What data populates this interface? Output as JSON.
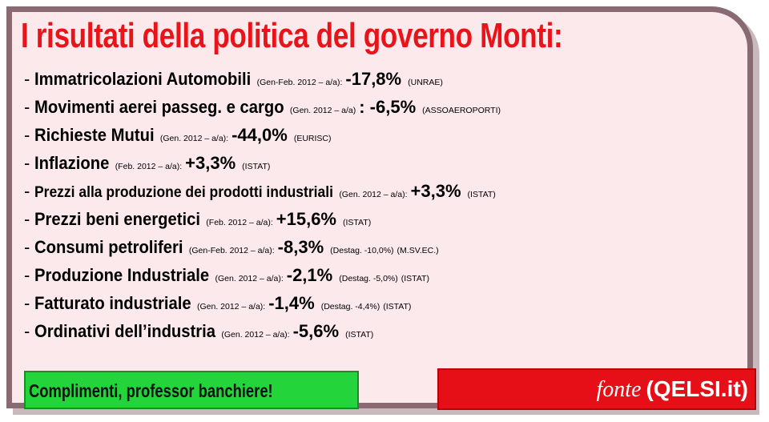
{
  "title": "I risultati della politica del governo Monti:",
  "items": [
    {
      "label": "Immatricolazioni Automobili",
      "detail": "(Gen-Feb. 2012 – a/a):",
      "value": "-17,8%",
      "note": "",
      "source": "(UNRAE)"
    },
    {
      "label": "Movimenti aerei passeg. e cargo",
      "detail": "(Gen. 2012 – a/a)",
      "value": ": -6,5%",
      "note": "",
      "source": "(ASSOAEROPORTI)"
    },
    {
      "label": "Richieste Mutui",
      "detail": "(Gen. 2012 – a/a):",
      "value": "-44,0%",
      "note": "",
      "source": "(EURISC)"
    },
    {
      "label": "Inflazione",
      "detail": "(Feb. 2012 – a/a):",
      "value": "+3,3%",
      "note": "",
      "source": "(ISTAT)"
    },
    {
      "label": "Prezzi alla produzione dei prodotti industriali",
      "detail": "(Gen. 2012 – a/a):",
      "value": "+3,3%",
      "note": "",
      "source": "(ISTAT)"
    },
    {
      "label": "Prezzi beni energetici",
      "detail": "(Feb. 2012 – a/a):",
      "value": "+15,6%",
      "note": "",
      "source": "(ISTAT)"
    },
    {
      "label": "Consumi petroliferi",
      "detail": "(Gen-Feb. 2012 – a/a):",
      "value": "-8,3%",
      "note": "(Destag. -10,0%)",
      "source": "(M.SV.EC.)"
    },
    {
      "label": "Produzione Industriale",
      "detail": "(Gen. 2012 – a/a):",
      "value": "-2,1%",
      "note": "(Destag. -5,0%)",
      "source": "(ISTAT)"
    },
    {
      "label": "Fatturato industriale",
      "detail": "(Gen. 2012 – a/a):",
      "value": "-1,4%",
      "note": "(Destag. -4,4%)",
      "source": "(ISTAT)"
    },
    {
      "label": "Ordinativi dell’industria",
      "detail": "(Gen. 2012 – a/a):",
      "value": "-5,6%",
      "note": "",
      "source": "(ISTAT)"
    }
  ],
  "green_box": {
    "text": "Complimenti, professor banchiere!"
  },
  "red_box": {
    "fonte_word": "fonte",
    "fonte_source": "(QELSI.it)"
  },
  "colors": {
    "title_red": "#e8141a",
    "background_pink": "#fce9ec",
    "border": "#8a6a72",
    "green": "#23d43a",
    "red": "#e60f17"
  }
}
